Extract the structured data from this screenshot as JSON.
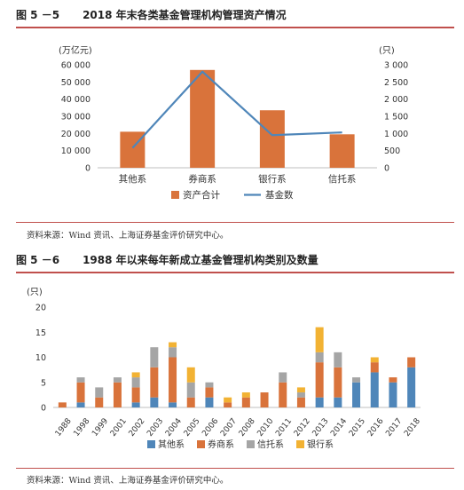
{
  "figure1": {
    "number": "图 5 －5",
    "title": "2018 年末各类基金管理机构管理资产情况",
    "source": "资料来源：Wind 资讯、上海证券基金评价研究中心。"
  },
  "figure2": {
    "number": "图 5 －6",
    "title": "1988 年以来每年新成立基金管理机构类别及数量",
    "source": "资料来源：Wind 资讯、上海证券基金评价研究中心。"
  },
  "colors": {
    "accent_rule": "#c0504d",
    "orange": "#d9733b",
    "blue": "#4f86b9",
    "gray": "#a5a5a5",
    "gold": "#f2b233"
  },
  "chart_data": [
    {
      "type": "bar",
      "combo_with": "line",
      "categories": [
        "其他系",
        "券商系",
        "银行系",
        "信托系"
      ],
      "series": [
        {
          "name": "资产合计",
          "type": "bar",
          "axis": "left",
          "values": [
            21000,
            57000,
            33500,
            19500
          ]
        },
        {
          "name": "基金数",
          "type": "line",
          "axis": "right",
          "values": [
            580,
            2800,
            950,
            1030
          ]
        }
      ],
      "ylabel": "(万亿元)",
      "y2label": "(只)",
      "ylim": [
        0,
        60000
      ],
      "y2lim": [
        0,
        3000
      ],
      "yticks": [
        "0",
        "10 000",
        "20 000",
        "30 000",
        "40 000",
        "50 000",
        "60 000"
      ],
      "y2ticks": [
        "0",
        "500",
        "1 000",
        "1 500",
        "2 000",
        "2 500",
        "3 000"
      ],
      "legend_position": "bottom",
      "grid": false
    },
    {
      "type": "bar",
      "stacked": true,
      "categories": [
        "1988",
        "1998",
        "1999",
        "2001",
        "2002",
        "2003",
        "2004",
        "2005",
        "2006",
        "2007",
        "2008",
        "2010",
        "2011",
        "2012",
        "2013",
        "2014",
        "2015",
        "2016",
        "2017",
        "2018"
      ],
      "series": [
        {
          "name": "其他系",
          "values": [
            0,
            1,
            0,
            0,
            1,
            2,
            1,
            0,
            2,
            0,
            0,
            0,
            0,
            0,
            2,
            2,
            5,
            7,
            5,
            8
          ]
        },
        {
          "name": "券商系",
          "values": [
            1,
            4,
            2,
            5,
            3,
            6,
            9,
            2,
            2,
            1,
            2,
            3,
            5,
            2,
            7,
            6,
            0,
            2,
            1,
            2
          ]
        },
        {
          "name": "信托系",
          "values": [
            0,
            1,
            2,
            1,
            2,
            4,
            2,
            3,
            1,
            0,
            0,
            0,
            2,
            1,
            2,
            3,
            1,
            0,
            0,
            0
          ]
        },
        {
          "name": "银行系",
          "values": [
            0,
            0,
            0,
            0,
            1,
            0,
            1,
            3,
            0,
            1,
            1,
            0,
            0,
            1,
            5,
            0,
            0,
            1,
            0,
            0
          ]
        }
      ],
      "ylabel": "(只)",
      "ylim": [
        0,
        20
      ],
      "yticks": [
        "0",
        "5",
        "10",
        "15",
        "20"
      ],
      "legend_position": "bottom",
      "grid": false
    }
  ]
}
